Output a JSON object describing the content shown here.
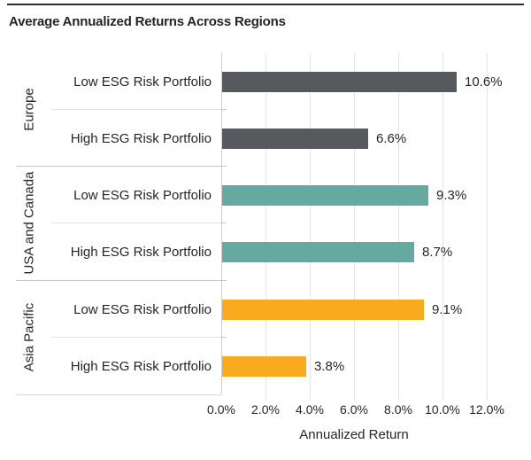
{
  "header": {
    "title": "Average Annualized Returns Across Regions"
  },
  "chart_data": {
    "type": "bar",
    "orientation": "horizontal",
    "title": "Average Annualized Returns Across Regions",
    "xlabel": "Annualized Return",
    "x_unit": "%",
    "xlim": [
      0,
      12.4
    ],
    "x_tick_values": [
      0,
      2,
      4,
      6,
      8,
      10,
      12
    ],
    "x_tick_labels": [
      "0.0%",
      "2.0%",
      "4.0%",
      "6.0%",
      "8.0%",
      "10.0%",
      "12.0%"
    ],
    "grid": "vertical-gridlines-on",
    "legend": "none",
    "groups": [
      {
        "region": "Europe",
        "color": "#565a5e",
        "rows": [
          {
            "label": "Low ESG Risk Portfolio",
            "value": 10.6,
            "value_label": "10.6%"
          },
          {
            "label": "High ESG Risk Portfolio",
            "value": 6.6,
            "value_label": "6.6%"
          }
        ]
      },
      {
        "region": "USA and Canada",
        "color": "#66a9a1",
        "rows": [
          {
            "label": "Low ESG Risk Portfolio",
            "value": 9.3,
            "value_label": "9.3%"
          },
          {
            "label": "High ESG Risk Portfolio",
            "value": 8.7,
            "value_label": "8.7%"
          }
        ]
      },
      {
        "region": "Asia Pacific",
        "color": "#f8ab1e",
        "rows": [
          {
            "label": "Low ESG Risk Portfolio",
            "value": 9.1,
            "value_label": "9.1%"
          },
          {
            "label": "High ESG Risk Portfolio",
            "value": 3.8,
            "value_label": "3.8%"
          }
        ]
      }
    ]
  }
}
